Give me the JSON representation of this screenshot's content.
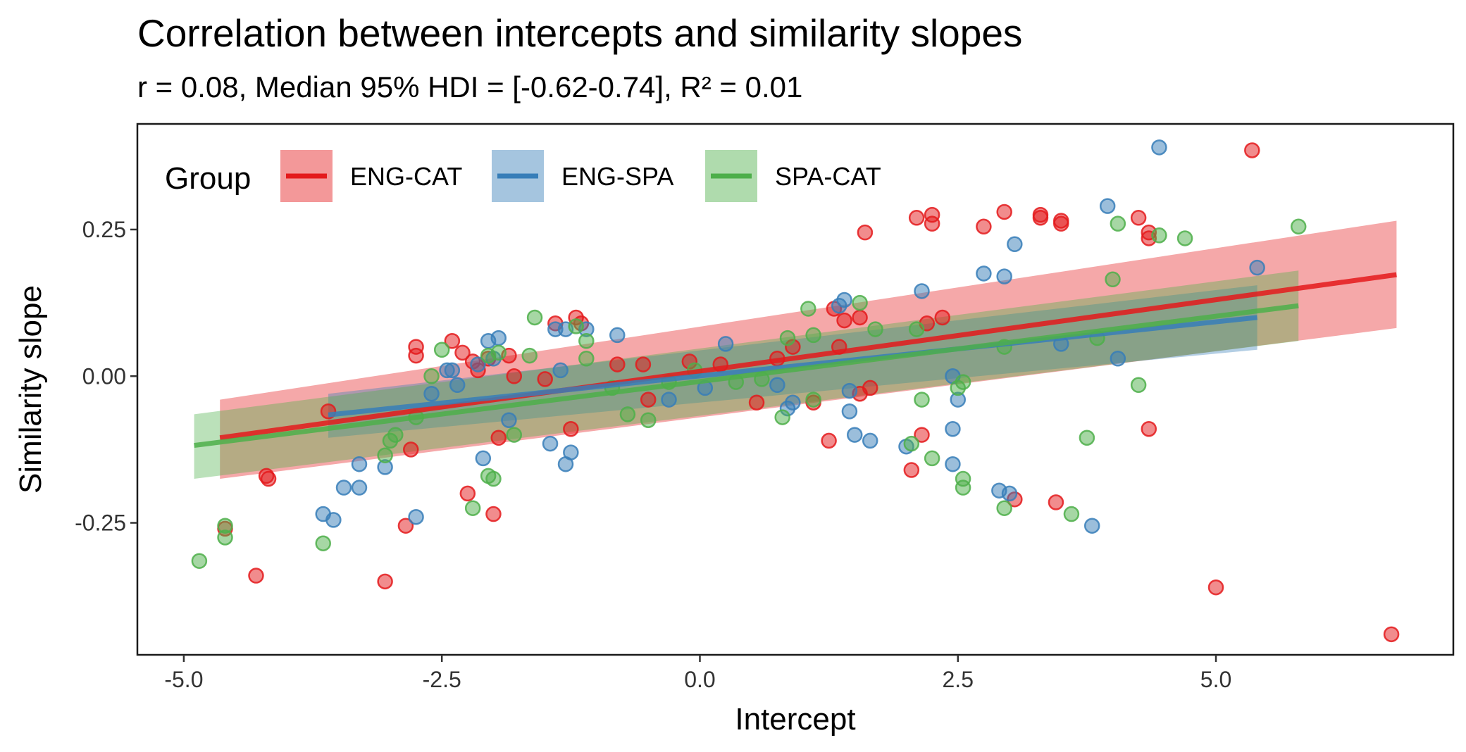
{
  "chart_data": {
    "type": "scatter",
    "title": "Correlation between intercepts and similarity slopes",
    "subtitle": "r = 0.08, Median 95% HDI = [-0.62-0.74], R² = 0.01",
    "xlabel": "Intercept",
    "ylabel": "Similarity slope",
    "xlim": [
      -5.45,
      7.3
    ],
    "ylim": [
      -0.475,
      0.43
    ],
    "x_ticks": [
      -5.0,
      -2.5,
      0.0,
      2.5,
      5.0
    ],
    "x_tick_labels": [
      "-5.0",
      "-2.5",
      "0.0",
      "2.5",
      "5.0"
    ],
    "y_ticks": [
      0.25,
      0.0,
      -0.25
    ],
    "y_tick_labels": [
      "0.25",
      "0.00",
      "-0.25"
    ],
    "grid": false,
    "legend": {
      "title": "Group",
      "placement": "top-left inside"
    },
    "colors": {
      "ENG-CAT": "#e41a1c",
      "ENG-SPA": "#377eb8",
      "SPA-CAT": "#4daf4a"
    },
    "series": [
      {
        "name": "ENG-CAT",
        "color": "#e41a1c",
        "fit": {
          "x": [
            -4.65,
            6.75
          ],
          "y": [
            -0.105,
            0.173
          ],
          "ci_lower_ends": [
            -0.175,
            0.082
          ],
          "ci_upper_ends": [
            -0.04,
            0.265
          ]
        },
        "points": [
          [
            -4.6,
            -0.26
          ],
          [
            -4.3,
            -0.34
          ],
          [
            -4.2,
            -0.17
          ],
          [
            -4.18,
            -0.175
          ],
          [
            -3.6,
            -0.06
          ],
          [
            -3.05,
            -0.35
          ],
          [
            -2.85,
            -0.255
          ],
          [
            -2.8,
            -0.125
          ],
          [
            -2.75,
            0.05
          ],
          [
            -2.75,
            0.035
          ],
          [
            -2.4,
            0.06
          ],
          [
            -2.3,
            0.04
          ],
          [
            -2.25,
            -0.2
          ],
          [
            -2.2,
            0.025
          ],
          [
            -2.15,
            0.01
          ],
          [
            -2.05,
            0.03
          ],
          [
            -2.0,
            -0.235
          ],
          [
            -1.95,
            -0.105
          ],
          [
            -1.85,
            0.035
          ],
          [
            -1.8,
            0.0
          ],
          [
            -1.5,
            -0.005
          ],
          [
            -1.4,
            0.09
          ],
          [
            -1.25,
            -0.09
          ],
          [
            -1.2,
            0.1
          ],
          [
            -1.15,
            0.09
          ],
          [
            -0.8,
            0.02
          ],
          [
            -0.55,
            0.02
          ],
          [
            -0.5,
            -0.04
          ],
          [
            -0.1,
            0.025
          ],
          [
            0.2,
            0.02
          ],
          [
            0.55,
            -0.045
          ],
          [
            0.75,
            0.03
          ],
          [
            0.9,
            0.05
          ],
          [
            1.1,
            -0.045
          ],
          [
            1.3,
            0.115
          ],
          [
            1.25,
            -0.11
          ],
          [
            1.35,
            0.05
          ],
          [
            1.4,
            0.095
          ],
          [
            1.55,
            -0.03
          ],
          [
            1.55,
            0.1
          ],
          [
            1.6,
            0.245
          ],
          [
            1.65,
            -0.02
          ],
          [
            2.05,
            -0.16
          ],
          [
            2.1,
            0.27
          ],
          [
            2.15,
            -0.1
          ],
          [
            2.2,
            0.09
          ],
          [
            2.25,
            0.275
          ],
          [
            2.25,
            0.26
          ],
          [
            2.35,
            0.1
          ],
          [
            2.75,
            0.255
          ],
          [
            2.95,
            0.28
          ],
          [
            3.05,
            -0.21
          ],
          [
            3.3,
            0.275
          ],
          [
            3.3,
            0.27
          ],
          [
            3.45,
            -0.215
          ],
          [
            3.5,
            0.265
          ],
          [
            3.5,
            0.26
          ],
          [
            4.25,
            0.27
          ],
          [
            4.35,
            0.245
          ],
          [
            4.35,
            0.235
          ],
          [
            4.35,
            -0.09
          ],
          [
            5.0,
            -0.36
          ],
          [
            5.35,
            0.385
          ],
          [
            6.7,
            -0.44
          ]
        ]
      },
      {
        "name": "ENG-SPA",
        "color": "#377eb8",
        "fit": {
          "x": [
            -3.6,
            5.4
          ],
          "y": [
            -0.066,
            0.1
          ],
          "ci_lower_ends": [
            -0.105,
            0.045
          ],
          "ci_upper_ends": [
            -0.03,
            0.155
          ]
        },
        "points": [
          [
            -3.65,
            -0.235
          ],
          [
            -3.55,
            -0.245
          ],
          [
            -3.45,
            -0.19
          ],
          [
            -3.3,
            -0.15
          ],
          [
            -3.3,
            -0.19
          ],
          [
            -3.05,
            -0.155
          ],
          [
            -2.75,
            -0.24
          ],
          [
            -2.6,
            -0.03
          ],
          [
            -2.45,
            0.01
          ],
          [
            -2.4,
            0.01
          ],
          [
            -2.35,
            -0.015
          ],
          [
            -2.15,
            0.02
          ],
          [
            -2.1,
            -0.14
          ],
          [
            -2.05,
            0.06
          ],
          [
            -2.0,
            0.03
          ],
          [
            -1.95,
            0.065
          ],
          [
            -1.85,
            -0.075
          ],
          [
            -1.45,
            -0.115
          ],
          [
            -1.4,
            0.08
          ],
          [
            -1.35,
            0.01
          ],
          [
            -1.3,
            0.08
          ],
          [
            -1.25,
            -0.13
          ],
          [
            -1.3,
            -0.15
          ],
          [
            -1.1,
            0.08
          ],
          [
            -0.8,
            0.07
          ],
          [
            -0.3,
            -0.04
          ],
          [
            0.05,
            -0.02
          ],
          [
            0.25,
            0.055
          ],
          [
            0.75,
            -0.015
          ],
          [
            0.85,
            -0.055
          ],
          [
            0.9,
            -0.045
          ],
          [
            1.35,
            0.12
          ],
          [
            1.4,
            0.13
          ],
          [
            1.45,
            -0.06
          ],
          [
            1.45,
            -0.025
          ],
          [
            1.5,
            -0.1
          ],
          [
            1.65,
            -0.11
          ],
          [
            2.0,
            -0.12
          ],
          [
            2.15,
            0.145
          ],
          [
            2.45,
            0.0
          ],
          [
            2.45,
            -0.09
          ],
          [
            2.45,
            -0.15
          ],
          [
            2.5,
            -0.04
          ],
          [
            2.75,
            0.175
          ],
          [
            2.9,
            -0.195
          ],
          [
            2.95,
            0.17
          ],
          [
            3.0,
            -0.2
          ],
          [
            3.05,
            0.225
          ],
          [
            3.5,
            0.055
          ],
          [
            3.8,
            -0.255
          ],
          [
            3.95,
            0.29
          ],
          [
            4.05,
            0.03
          ],
          [
            4.45,
            0.39
          ],
          [
            5.4,
            0.185
          ]
        ]
      },
      {
        "name": "SPA-CAT",
        "color": "#4daf4a",
        "fit": {
          "x": [
            -4.9,
            5.8
          ],
          "y": [
            -0.118,
            0.12
          ],
          "ci_lower_ends": [
            -0.175,
            0.06
          ],
          "ci_upper_ends": [
            -0.065,
            0.18
          ]
        },
        "points": [
          [
            -4.85,
            -0.315
          ],
          [
            -4.6,
            -0.275
          ],
          [
            -4.6,
            -0.255
          ],
          [
            -3.65,
            -0.285
          ],
          [
            -3.05,
            -0.135
          ],
          [
            -3.0,
            -0.11
          ],
          [
            -2.95,
            -0.1
          ],
          [
            -2.75,
            -0.07
          ],
          [
            -2.6,
            0.0
          ],
          [
            -2.5,
            0.045
          ],
          [
            -2.2,
            -0.225
          ],
          [
            -2.05,
            0.035
          ],
          [
            -2.05,
            -0.17
          ],
          [
            -2.0,
            -0.175
          ],
          [
            -1.95,
            0.04
          ],
          [
            -1.8,
            -0.1
          ],
          [
            -1.65,
            0.035
          ],
          [
            -1.6,
            0.1
          ],
          [
            -1.2,
            0.085
          ],
          [
            -1.1,
            0.06
          ],
          [
            -1.1,
            0.03
          ],
          [
            -0.85,
            -0.02
          ],
          [
            -0.7,
            -0.065
          ],
          [
            -0.5,
            -0.075
          ],
          [
            -0.3,
            -0.01
          ],
          [
            -0.05,
            0.01
          ],
          [
            0.35,
            -0.01
          ],
          [
            0.6,
            -0.005
          ],
          [
            0.8,
            -0.07
          ],
          [
            0.85,
            0.065
          ],
          [
            1.05,
            0.115
          ],
          [
            1.1,
            0.07
          ],
          [
            1.1,
            -0.04
          ],
          [
            1.55,
            0.125
          ],
          [
            1.7,
            0.08
          ],
          [
            2.05,
            -0.115
          ],
          [
            2.1,
            0.08
          ],
          [
            2.15,
            -0.04
          ],
          [
            2.25,
            -0.14
          ],
          [
            2.5,
            -0.02
          ],
          [
            2.55,
            -0.175
          ],
          [
            2.55,
            -0.19
          ],
          [
            2.55,
            -0.01
          ],
          [
            2.95,
            -0.225
          ],
          [
            2.95,
            0.05
          ],
          [
            3.6,
            -0.235
          ],
          [
            3.75,
            -0.105
          ],
          [
            3.85,
            0.065
          ],
          [
            4.0,
            0.165
          ],
          [
            4.05,
            0.26
          ],
          [
            4.25,
            -0.015
          ],
          [
            4.45,
            0.24
          ],
          [
            4.7,
            0.235
          ],
          [
            5.8,
            0.255
          ]
        ]
      }
    ]
  }
}
